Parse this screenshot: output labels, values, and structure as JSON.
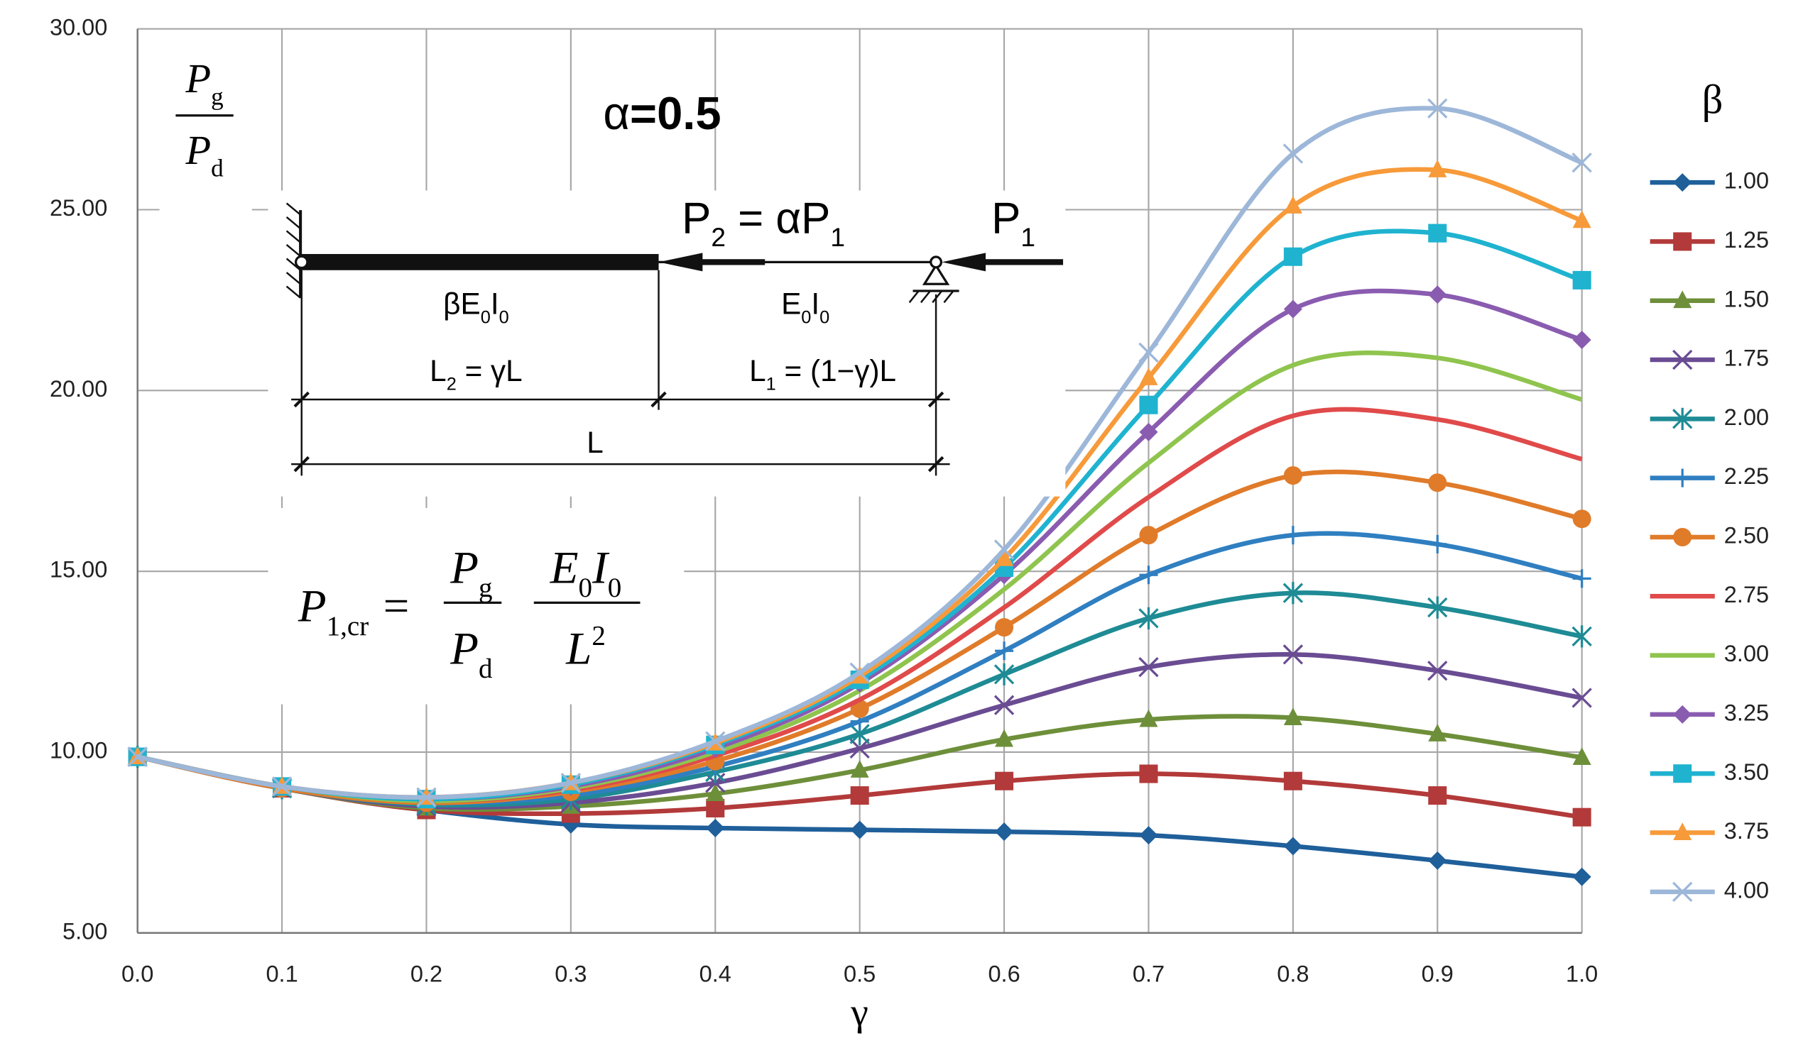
{
  "chart_data": {
    "type": "line",
    "x_label": "γ",
    "legend_title": "β",
    "legend": "right",
    "grid": true,
    "smooth": true,
    "x": [
      0,
      0.1,
      0.2,
      0.3,
      0.4,
      0.5,
      0.6,
      0.7,
      0.8,
      0.9,
      1
    ],
    "xlim": [
      0,
      1
    ],
    "xticks": [
      {
        "value": 0,
        "label": "0.0"
      },
      0.1,
      0.2,
      0.3,
      0.4,
      0.5,
      0.6,
      0.7,
      0.8,
      0.9,
      {
        "value": 1,
        "label": "1.0"
      }
    ],
    "ylim": [
      5,
      30
    ],
    "yticks": [
      {
        "value": 5,
        "label": "5.00"
      },
      {
        "value": 10,
        "label": "10.00"
      },
      {
        "value": 15,
        "label": "15.00"
      },
      {
        "value": 20,
        "label": "20.00"
      },
      {
        "value": 25,
        "label": "25.00"
      },
      {
        "value": 30,
        "label": "30.00"
      }
    ],
    "series": [
      {
        "name": "1.00",
        "color": "#1f5f9a",
        "marker": "diamond",
        "values": [
          9.87,
          9.0,
          8.4,
          8.0,
          7.9,
          7.85,
          7.8,
          7.7,
          7.4,
          7.0,
          6.55
        ]
      },
      {
        "name": "1.25",
        "color": "#b33a3a",
        "marker": "square",
        "values": [
          9.87,
          9.0,
          8.4,
          8.3,
          8.45,
          8.8,
          9.2,
          9.4,
          9.2,
          8.8,
          8.2
        ]
      },
      {
        "name": "1.50",
        "color": "#6e8f3a",
        "marker": "triangle",
        "values": [
          9.87,
          9.0,
          8.45,
          8.5,
          8.85,
          9.5,
          10.35,
          10.9,
          10.95,
          10.5,
          9.85
        ]
      },
      {
        "name": "1.75",
        "color": "#6a4c93",
        "marker": "x",
        "values": [
          9.87,
          9.0,
          8.5,
          8.6,
          9.15,
          10.1,
          11.3,
          12.35,
          12.7,
          12.25,
          11.5
        ]
      },
      {
        "name": "2.00",
        "color": "#1e8b95",
        "marker": "star",
        "values": [
          9.87,
          9.0,
          8.55,
          8.7,
          9.45,
          10.5,
          12.15,
          13.7,
          14.4,
          14.0,
          13.2
        ]
      },
      {
        "name": "2.25",
        "color": "#2f7fc1",
        "marker": "plus",
        "values": [
          9.87,
          9.0,
          8.6,
          8.8,
          9.6,
          10.85,
          12.8,
          14.9,
          16.0,
          15.75,
          14.8
        ]
      },
      {
        "name": "2.50",
        "color": "#e07b2a",
        "marker": "circle",
        "values": [
          9.87,
          9.0,
          8.6,
          8.9,
          9.75,
          11.2,
          13.45,
          16.0,
          17.65,
          17.45,
          16.45
        ]
      },
      {
        "name": "2.75",
        "color": "#e04a4a",
        "marker": "none",
        "values": [
          9.87,
          9.05,
          8.65,
          8.95,
          9.9,
          11.45,
          14.0,
          17.05,
          19.3,
          19.2,
          18.1
        ]
      },
      {
        "name": "3.00",
        "color": "#8fc44e",
        "marker": "none",
        "values": [
          9.87,
          9.05,
          8.65,
          9.0,
          10.0,
          11.7,
          14.5,
          18.0,
          20.7,
          20.9,
          19.75
        ]
      },
      {
        "name": "3.25",
        "color": "#8a5cb0",
        "marker": "diamond",
        "values": [
          9.87,
          9.05,
          8.7,
          9.05,
          10.1,
          11.9,
          14.9,
          18.85,
          22.25,
          22.65,
          21.4
        ]
      },
      {
        "name": "3.50",
        "color": "#1fb3d0",
        "marker": "square",
        "values": [
          9.87,
          9.05,
          8.7,
          9.1,
          10.2,
          12.0,
          15.1,
          19.6,
          23.7,
          24.35,
          23.05
        ]
      },
      {
        "name": "3.75",
        "color": "#f79a3a",
        "marker": "triangle",
        "values": [
          9.87,
          9.05,
          8.75,
          9.15,
          10.25,
          12.1,
          15.35,
          20.35,
          25.1,
          26.1,
          24.7
        ]
      },
      {
        "name": "4.00",
        "color": "#9db7d9",
        "marker": "x",
        "values": [
          9.87,
          9.05,
          8.75,
          9.15,
          10.3,
          12.2,
          15.6,
          21.05,
          26.55,
          27.8,
          26.3
        ]
      }
    ],
    "annotations": {
      "y_label_num": [
        "P",
        "g"
      ],
      "y_label_den": [
        "P",
        "d"
      ],
      "alpha": [
        "α",
        "=0.5"
      ],
      "p2_label": [
        "P",
        "2",
        " = αP",
        "1"
      ],
      "p1_label": [
        "P",
        "1"
      ],
      "beam_left": [
        "βE",
        "0",
        "I",
        "0"
      ],
      "beam_right": [
        "E",
        "0",
        "I",
        "0"
      ],
      "l2_label": [
        "L",
        "2",
        " = γL"
      ],
      "l1_label": [
        "L",
        "1",
        " = (1−γ)L"
      ],
      "l_label": "L",
      "formula_lhs": [
        "P",
        "1,cr",
        " ="
      ],
      "formula_num1": [
        "P",
        "g"
      ],
      "formula_den1": [
        "P",
        "d"
      ],
      "formula_num2": [
        "E",
        "0",
        "I",
        "0"
      ],
      "formula_den2": [
        "L",
        "2"
      ]
    }
  }
}
